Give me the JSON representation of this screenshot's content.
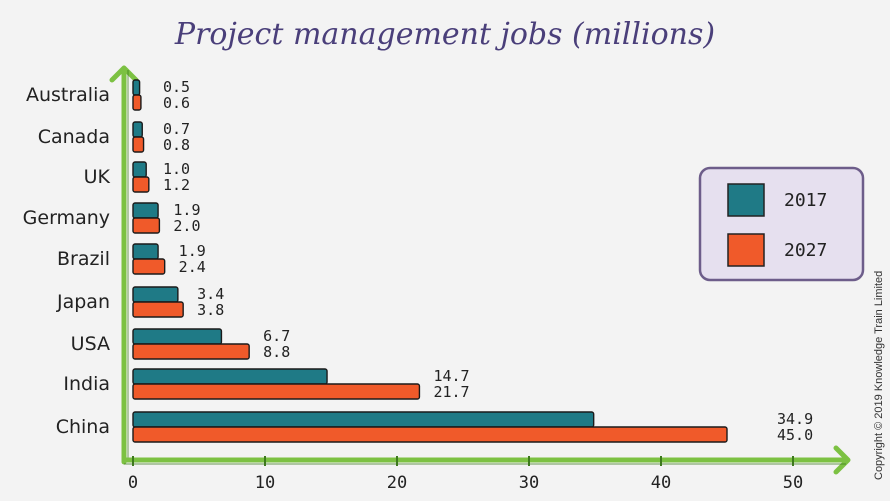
{
  "chart_data": {
    "type": "bar",
    "orientation": "horizontal",
    "title": "Project management jobs (millions)",
    "categories": [
      "Australia",
      "Canada",
      "UK",
      "Germany",
      "Brazil",
      "Japan",
      "USA",
      "India",
      "China"
    ],
    "series": [
      {
        "name": "2017",
        "color": "#1f7a86",
        "values": [
          0.5,
          0.7,
          1.0,
          1.9,
          1.9,
          3.4,
          6.7,
          14.7,
          34.9
        ],
        "labels": [
          "0.5",
          "0.7",
          "1.0",
          "1.9",
          "1.9",
          "3.4",
          "6.7",
          "14.7",
          "34.9"
        ]
      },
      {
        "name": "2027",
        "color": "#f05a2a",
        "values": [
          0.6,
          0.8,
          1.2,
          2.0,
          2.4,
          3.8,
          8.8,
          21.7,
          45.0
        ],
        "labels": [
          "0.6",
          "0.8",
          "1.2",
          "2.0",
          "2.4",
          "3.8",
          "8.8",
          "21.7",
          "45.0"
        ]
      }
    ],
    "xlim": [
      0,
      50
    ],
    "xticks": [
      0,
      10,
      20,
      30,
      40,
      50
    ],
    "xlabel": "",
    "ylabel": "",
    "grid": false,
    "legend_position": "right"
  },
  "colors": {
    "axis": "#7cc142",
    "legend_bg": "#e6e0ef",
    "legend_border": "#6d5d8a",
    "title": "#4a3f7a"
  },
  "copyright": "Copyright © 2019 Knowledge Train Limited"
}
